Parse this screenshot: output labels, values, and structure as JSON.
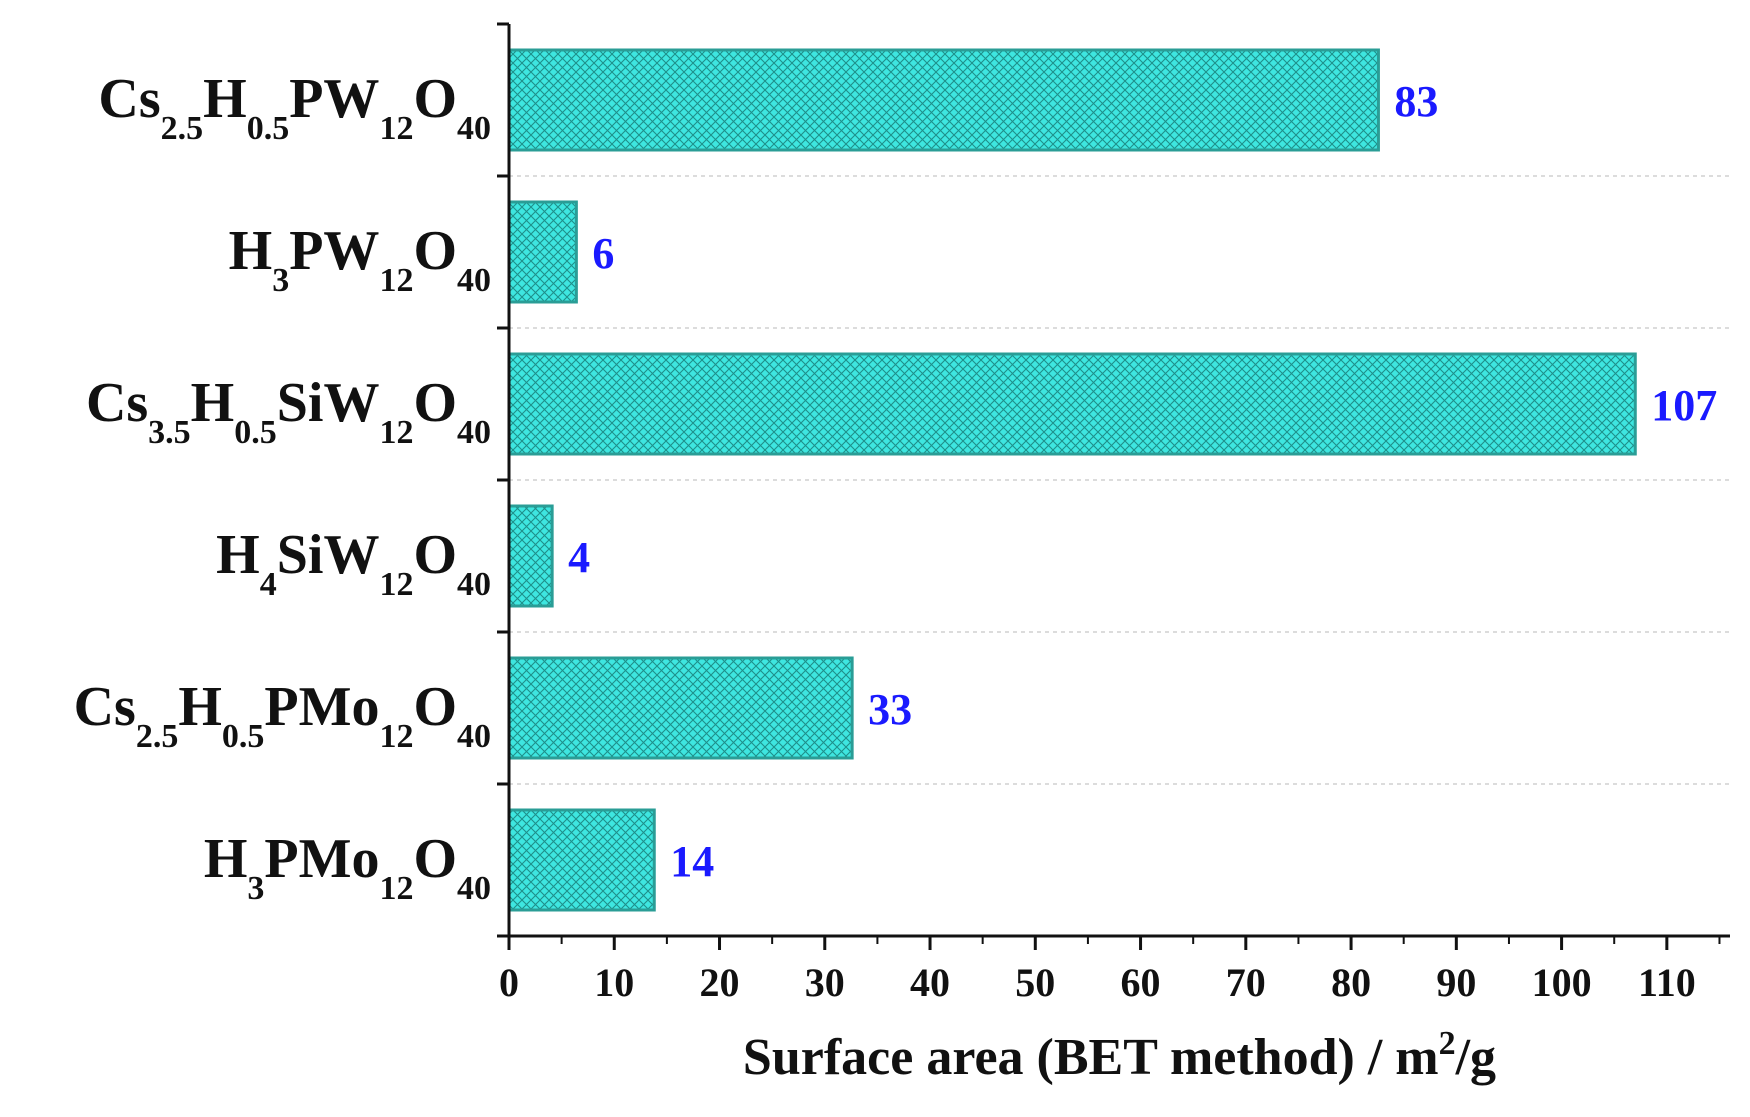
{
  "chart_data": {
    "type": "bar",
    "orientation": "horizontal",
    "categories": [
      "Cs2.5H0.5PW12O40",
      "H3PW12O40",
      "Cs3.5H0.5SiW12O40",
      "H4SiW12O40",
      "Cs2.5H0.5PMo12O40",
      "H3PMo12O40"
    ],
    "category_parts": [
      [
        [
          "Cs",
          ""
        ],
        [
          "2.5",
          "sub"
        ],
        [
          "H",
          ""
        ],
        [
          "0.5",
          "sub"
        ],
        [
          "PW",
          ""
        ],
        [
          "12",
          "sub"
        ],
        [
          "O",
          ""
        ],
        [
          "40",
          "sub"
        ]
      ],
      [
        [
          "H",
          ""
        ],
        [
          "3",
          "sub"
        ],
        [
          "PW",
          ""
        ],
        [
          "12",
          "sub"
        ],
        [
          "O",
          ""
        ],
        [
          "40",
          "sub"
        ]
      ],
      [
        [
          "Cs",
          ""
        ],
        [
          "3.5",
          "sub"
        ],
        [
          "H",
          ""
        ],
        [
          "0.5",
          "sub"
        ],
        [
          "SiW",
          ""
        ],
        [
          "12",
          "sub"
        ],
        [
          "O",
          ""
        ],
        [
          "40",
          "sub"
        ]
      ],
      [
        [
          "H",
          ""
        ],
        [
          "4",
          "sub"
        ],
        [
          "SiW",
          ""
        ],
        [
          "12",
          "sub"
        ],
        [
          "O",
          ""
        ],
        [
          "40",
          "sub"
        ]
      ],
      [
        [
          "Cs",
          ""
        ],
        [
          "2.5",
          "sub"
        ],
        [
          "H",
          ""
        ],
        [
          "0.5",
          "sub"
        ],
        [
          "PMo",
          ""
        ],
        [
          "12",
          "sub"
        ],
        [
          "O",
          ""
        ],
        [
          "40",
          "sub"
        ]
      ],
      [
        [
          "H",
          ""
        ],
        [
          "3",
          "sub"
        ],
        [
          "PMo",
          ""
        ],
        [
          "12",
          "sub"
        ],
        [
          "O",
          ""
        ],
        [
          "40",
          "sub"
        ]
      ]
    ],
    "values": [
      82.6,
      6.4,
      107.0,
      4.1,
      32.6,
      13.8
    ],
    "data_labels": [
      "83",
      "6",
      "107",
      "4",
      "33",
      "14"
    ],
    "xlim": [
      0,
      116
    ],
    "xticks": [
      0,
      10,
      20,
      30,
      40,
      50,
      60,
      70,
      80,
      90,
      100,
      110
    ],
    "xlabel_parts": [
      [
        "Surface area (BET method) / m",
        ""
      ],
      [
        "2",
        "sup"
      ],
      [
        "/g",
        ""
      ]
    ],
    "xlabel": "Surface area (BET method) / m2/g",
    "ylabel": "",
    "title": "",
    "grid": "horizontal dashed between categories",
    "legend": "none",
    "colors": {
      "bar_fill": "#3ee6e0",
      "bar_pattern": "#1e8f8a",
      "bar_edge": "#2a9d96",
      "data_label": "#1a1aff",
      "axis": "#111111",
      "grid": "#c8c8c8"
    }
  }
}
